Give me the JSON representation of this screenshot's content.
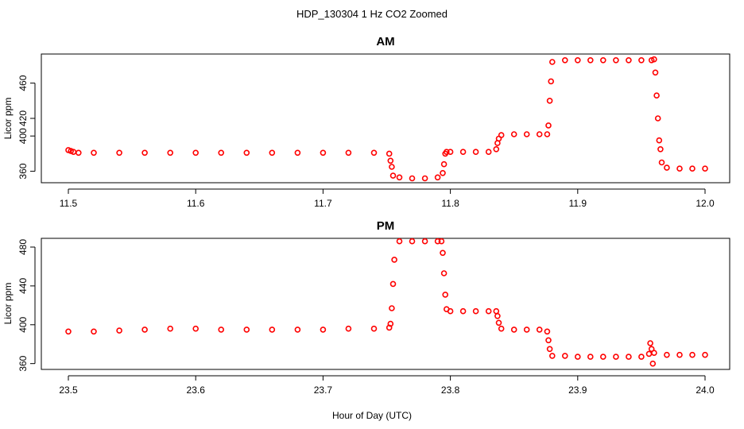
{
  "figure": {
    "title": "HDP_130304  1 Hz CO2 Zoomed",
    "xlabel": "Hour of Day (UTC)",
    "point_color": "#ff0000"
  },
  "chart_data": [
    {
      "type": "scatter",
      "title": "AM",
      "xlabel": "",
      "ylabel": "Licor ppm",
      "xlim": [
        11.5,
        12.0
      ],
      "ylim": [
        347,
        493
      ],
      "xticks": [
        "11.5",
        "11.6",
        "11.7",
        "11.8",
        "11.9",
        "12.0"
      ],
      "yticks": [
        "360",
        "400",
        "420",
        "460"
      ],
      "series": [
        {
          "x": [
            11.5,
            11.502,
            11.504,
            11.508,
            11.52,
            11.54,
            11.56,
            11.58,
            11.6,
            11.62,
            11.64,
            11.66,
            11.68,
            11.7,
            11.72,
            11.74,
            11.752,
            11.753,
            11.754,
            11.755,
            11.76,
            11.77,
            11.78,
            11.79,
            11.794,
            11.795,
            11.796,
            11.797,
            11.8,
            11.81,
            11.82,
            11.83,
            11.836,
            11.837,
            11.838,
            11.84,
            11.85,
            11.86,
            11.87,
            11.876,
            11.877,
            11.878,
            11.879,
            11.88,
            11.89,
            11.9,
            11.91,
            11.92,
            11.93,
            11.94,
            11.95,
            11.958,
            11.96,
            11.961,
            11.962,
            11.963,
            11.964,
            11.965,
            11.966,
            11.97,
            11.98,
            11.99,
            12.0
          ],
          "y": [
            384,
            383,
            382,
            381,
            381,
            381,
            381,
            381,
            381,
            381,
            381,
            381,
            381,
            381,
            381,
            381,
            380,
            372,
            365,
            355,
            353,
            352,
            352,
            353,
            358,
            368,
            380,
            382,
            382,
            382,
            382,
            382,
            385,
            392,
            397,
            401,
            402,
            402,
            402,
            402,
            412,
            440,
            462,
            484,
            486,
            486,
            486,
            486,
            486,
            486,
            486,
            486,
            487,
            472,
            446,
            420,
            395,
            385,
            370,
            364,
            363,
            363,
            363
          ]
        }
      ]
    },
    {
      "type": "scatter",
      "title": "PM",
      "xlabel": "",
      "ylabel": "Licor ppm",
      "xlim": [
        23.48,
        24.01
      ],
      "ylim": [
        354,
        489
      ],
      "xticks": [
        "23.5",
        "23.6",
        "23.7",
        "23.8",
        "23.9",
        "24.0"
      ],
      "yticks": [
        "360",
        "400",
        "440",
        "480"
      ],
      "series": [
        {
          "x": [
            23.5,
            23.52,
            23.54,
            23.56,
            23.58,
            23.6,
            23.62,
            23.64,
            23.66,
            23.68,
            23.7,
            23.72,
            23.74,
            23.752,
            23.753,
            23.754,
            23.755,
            23.756,
            23.76,
            23.77,
            23.78,
            23.79,
            23.793,
            23.794,
            23.795,
            23.796,
            23.797,
            23.8,
            23.81,
            23.82,
            23.83,
            23.836,
            23.837,
            23.838,
            23.84,
            23.85,
            23.86,
            23.87,
            23.876,
            23.877,
            23.878,
            23.88,
            23.89,
            23.9,
            23.91,
            23.92,
            23.93,
            23.94,
            23.95,
            23.956,
            23.957,
            23.958,
            23.959,
            23.96,
            23.97,
            23.98,
            23.99,
            24.0
          ],
          "y": [
            393,
            393,
            394,
            395,
            396,
            396,
            395,
            395,
            395,
            395,
            395,
            396,
            396,
            397,
            401,
            417,
            442,
            467,
            486,
            486,
            486,
            486,
            486,
            474,
            453,
            431,
            416,
            414,
            414,
            414,
            414,
            414,
            409,
            402,
            396,
            395,
            395,
            395,
            393,
            384,
            375,
            368,
            368,
            367,
            367,
            367,
            367,
            367,
            367,
            370,
            381,
            375,
            360,
            371,
            369,
            369,
            369,
            369
          ]
        }
      ]
    }
  ]
}
